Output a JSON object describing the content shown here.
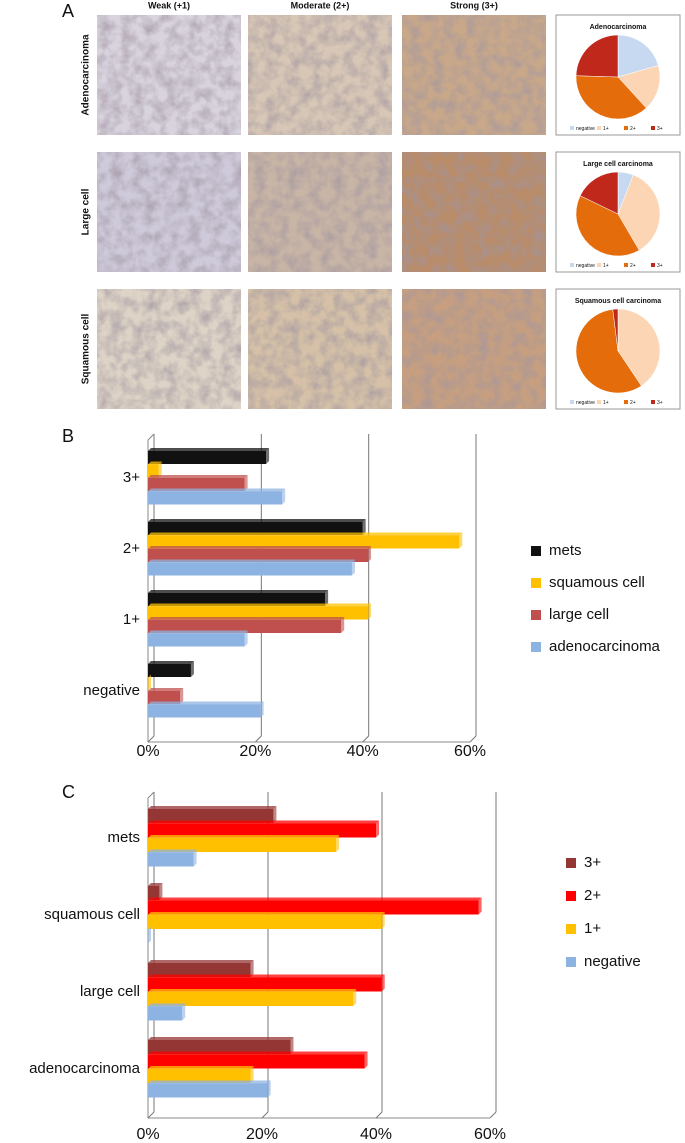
{
  "panel_labels": [
    "A",
    "B",
    "C"
  ],
  "micrographs": {
    "columns": [
      "Weak (+1)",
      "Moderate (2+)",
      "Strong (3+)"
    ],
    "rows": [
      "Adenocarcinoma",
      "Large cell",
      "Squamous cell"
    ]
  },
  "chart_data": [
    {
      "type": "pie",
      "title": "Adenocarcinoma",
      "categories": [
        "negative",
        "1+",
        "2+",
        "3+"
      ],
      "values": [
        21,
        18,
        38,
        25
      ],
      "colors": [
        "#c6d9f1",
        "#fcd5b4",
        "#e46c0a",
        "#c0281c"
      ]
    },
    {
      "type": "pie",
      "title": "Large cell carcinoma",
      "categories": [
        "negative",
        "1+",
        "2+",
        "3+"
      ],
      "values": [
        6,
        36,
        41,
        18
      ],
      "colors": [
        "#c6d9f1",
        "#fcd5b4",
        "#e46c0a",
        "#c0281c"
      ]
    },
    {
      "type": "pie",
      "title": "Squamous cell carcinoma",
      "categories": [
        "negative",
        "1+",
        "2+",
        "3+"
      ],
      "values": [
        0,
        41,
        58,
        2
      ],
      "colors": [
        "#c6d9f1",
        "#fcd5b4",
        "#e46c0a",
        "#c0281c"
      ]
    },
    {
      "type": "bar",
      "orientation": "horizontal",
      "categories": [
        "3+",
        "2+",
        "1+",
        "negative"
      ],
      "series": [
        {
          "name": "mets",
          "color": "#111111",
          "values": [
            22,
            40,
            33,
            8
          ]
        },
        {
          "name": "squamous cell",
          "color": "#ffc000",
          "values": [
            2,
            58,
            41,
            0
          ]
        },
        {
          "name": "large cell",
          "color": "#c0504d",
          "values": [
            18,
            41,
            36,
            6
          ]
        },
        {
          "name": "adenocarcinoma",
          "color": "#8db3e2",
          "values": [
            25,
            38,
            18,
            21
          ]
        }
      ],
      "xlim": [
        0,
        60
      ],
      "xticks": [
        {
          "value": 0,
          "label": "0%"
        },
        {
          "value": 20,
          "label": "20%"
        },
        {
          "value": 40,
          "label": "40%"
        },
        {
          "value": 60,
          "label": "60%"
        }
      ],
      "grid": true,
      "legend": "right"
    },
    {
      "type": "bar",
      "orientation": "horizontal",
      "categories": [
        "mets",
        "squamous cell",
        "large cell",
        "adenocarcinoma"
      ],
      "series": [
        {
          "name": "3+",
          "color": "#943634",
          "values": [
            22,
            2,
            18,
            25
          ]
        },
        {
          "name": "2+",
          "color": "#ff0000",
          "values": [
            40,
            58,
            41,
            38
          ]
        },
        {
          "name": "1+",
          "color": "#ffc000",
          "values": [
            33,
            41,
            36,
            18
          ]
        },
        {
          "name": "negative",
          "color": "#8db3e2",
          "values": [
            8,
            0,
            6,
            21
          ]
        }
      ],
      "xlim": [
        0,
        60
      ],
      "xticks": [
        {
          "value": 0,
          "label": "0%"
        },
        {
          "value": 20,
          "label": "20%"
        },
        {
          "value": 40,
          "label": "40%"
        },
        {
          "value": 60,
          "label": "60%"
        }
      ],
      "grid": true,
      "legend": "right"
    }
  ]
}
